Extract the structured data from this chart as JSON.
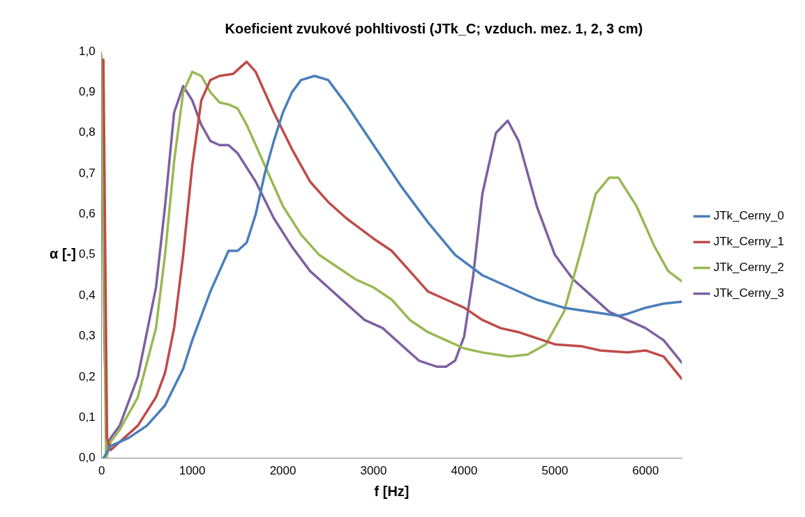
{
  "chart_data": {
    "type": "line",
    "title": "Koeficient zvukové pohltivosti (JTk_C; vzduch. mez. 1, 2, 3 cm)",
    "xlabel": "f [Hz]",
    "ylabel": "α [-]",
    "xlim": [
      0,
      6400
    ],
    "xticks": [
      0,
      1000,
      2000,
      3000,
      4000,
      5000,
      6000
    ],
    "ylim": [
      0,
      1
    ],
    "yticks": [
      {
        "value": 0,
        "label": "0,0"
      },
      {
        "value": 0.1,
        "label": "0,1"
      },
      {
        "value": 0.2,
        "label": "0,2"
      },
      {
        "value": 0.3,
        "label": "0,3"
      },
      {
        "value": 0.4,
        "label": "0,4"
      },
      {
        "value": 0.5,
        "label": "0,5"
      },
      {
        "value": 0.6,
        "label": "0,6"
      },
      {
        "value": 0.7,
        "label": "0,7"
      },
      {
        "value": 0.8,
        "label": "0,8"
      },
      {
        "value": 0.9,
        "label": "0,9"
      },
      {
        "value": 1,
        "label": "1,0"
      }
    ],
    "grid": false,
    "legend": "right",
    "marker": "none",
    "line_style": "solid",
    "series": [
      {
        "name": "JTk_Cerny_0",
        "color": "#4a7ebb",
        "x": [
          20,
          100,
          300,
          500,
          700,
          900,
          1000,
          1100,
          1200,
          1300,
          1400,
          1500,
          1600,
          1700,
          1800,
          1900,
          2000,
          2100,
          2200,
          2350,
          2500,
          2700,
          3000,
          3300,
          3600,
          3900,
          4200,
          4500,
          4800,
          5100,
          5400,
          5700,
          5800,
          6000,
          6200,
          6400
        ],
        "values": [
          0.0,
          0.03,
          0.05,
          0.08,
          0.13,
          0.22,
          0.29,
          0.35,
          0.41,
          0.46,
          0.51,
          0.51,
          0.53,
          0.6,
          0.7,
          0.78,
          0.85,
          0.9,
          0.93,
          0.94,
          0.93,
          0.87,
          0.77,
          0.67,
          0.58,
          0.5,
          0.45,
          0.42,
          0.39,
          0.37,
          0.36,
          0.35,
          0.355,
          0.37,
          0.38,
          0.385
        ]
      },
      {
        "name": "JTk_Cerny_1",
        "color": "#be4b48",
        "x": [
          20,
          60,
          100,
          200,
          400,
          600,
          700,
          800,
          900,
          1000,
          1100,
          1200,
          1300,
          1450,
          1600,
          1700,
          1900,
          2100,
          2300,
          2500,
          2700,
          3000,
          3200,
          3400,
          3600,
          3800,
          4000,
          4200,
          4400,
          4600,
          4800,
          5000,
          5300,
          5500,
          5800,
          6000,
          6200,
          6400
        ],
        "values": [
          0.98,
          0.05,
          0.02,
          0.04,
          0.08,
          0.15,
          0.21,
          0.32,
          0.5,
          0.72,
          0.88,
          0.93,
          0.94,
          0.945,
          0.975,
          0.95,
          0.85,
          0.76,
          0.68,
          0.63,
          0.59,
          0.54,
          0.51,
          0.46,
          0.41,
          0.39,
          0.37,
          0.34,
          0.32,
          0.31,
          0.295,
          0.28,
          0.275,
          0.265,
          0.26,
          0.265,
          0.25,
          0.195
        ]
      },
      {
        "name": "JTk_Cerny_2",
        "color": "#98b954",
        "x": [
          0,
          20,
          50,
          100,
          200,
          400,
          600,
          700,
          800,
          900,
          1000,
          1100,
          1200,
          1300,
          1400,
          1500,
          1600,
          1800,
          2000,
          2200,
          2400,
          2600,
          2800,
          3000,
          3200,
          3400,
          3600,
          3800,
          4000,
          4200,
          4500,
          4700,
          4900,
          5100,
          5300,
          5450,
          5600,
          5700,
          5900,
          6100,
          6250,
          6400
        ],
        "values": [
          0.99,
          0.57,
          0.0,
          0.04,
          0.07,
          0.15,
          0.32,
          0.5,
          0.73,
          0.9,
          0.95,
          0.94,
          0.9,
          0.875,
          0.87,
          0.86,
          0.82,
          0.72,
          0.62,
          0.55,
          0.5,
          0.47,
          0.44,
          0.42,
          0.39,
          0.34,
          0.31,
          0.29,
          0.27,
          0.26,
          0.25,
          0.255,
          0.28,
          0.36,
          0.52,
          0.65,
          0.69,
          0.69,
          0.62,
          0.52,
          0.46,
          0.435
        ]
      },
      {
        "name": "JTk_Cerny_3",
        "color": "#7d60a0",
        "x": [
          0,
          30,
          60,
          100,
          200,
          400,
          600,
          700,
          800,
          900,
          1000,
          1100,
          1200,
          1300,
          1400,
          1500,
          1700,
          1900,
          2100,
          2300,
          2500,
          2700,
          2900,
          3100,
          3300,
          3500,
          3700,
          3800,
          3900,
          4000,
          4100,
          4200,
          4350,
          4480,
          4600,
          4800,
          5000,
          5200,
          5400,
          5600,
          5800,
          6000,
          6200,
          6400
        ],
        "values": [
          0.94,
          0.3,
          0.02,
          0.05,
          0.08,
          0.2,
          0.42,
          0.62,
          0.85,
          0.915,
          0.88,
          0.82,
          0.78,
          0.77,
          0.77,
          0.75,
          0.68,
          0.59,
          0.52,
          0.46,
          0.42,
          0.38,
          0.34,
          0.32,
          0.28,
          0.24,
          0.225,
          0.225,
          0.24,
          0.3,
          0.45,
          0.65,
          0.8,
          0.83,
          0.78,
          0.62,
          0.5,
          0.44,
          0.4,
          0.36,
          0.34,
          0.32,
          0.29,
          0.235
        ]
      }
    ]
  }
}
